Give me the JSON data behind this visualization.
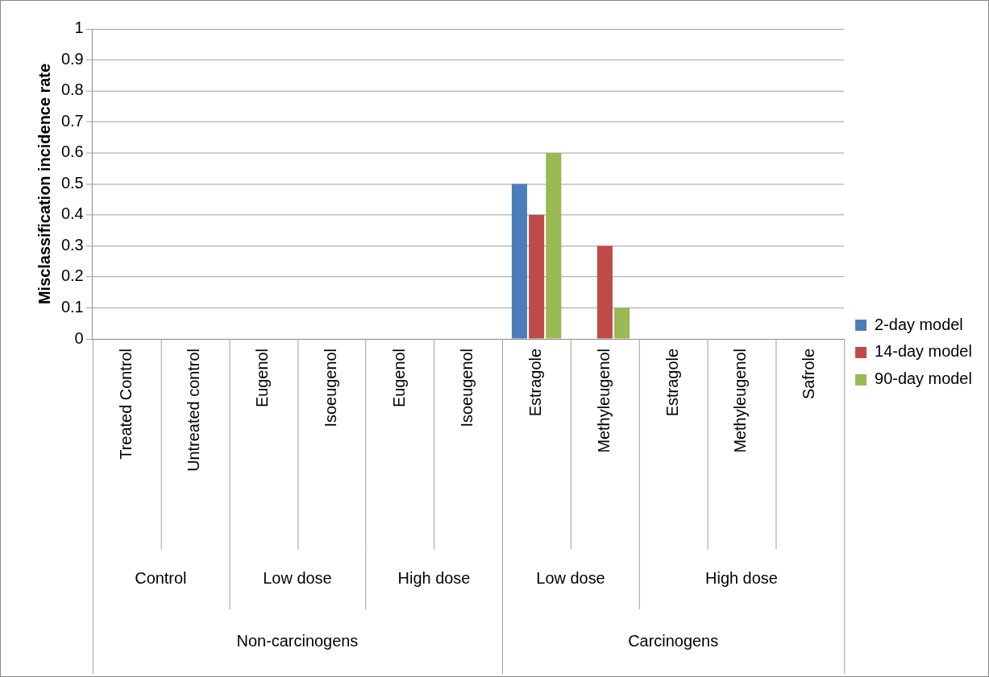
{
  "chart_data": {
    "type": "bar",
    "ylabel": "Misclassification incidence rate",
    "categories": [
      "Treated Control",
      "Untreated control",
      "Eugenol",
      "Isoeugenol",
      "Eugenol",
      "Isoeugenol",
      "Estragole",
      "Methyleugenol",
      "Estragole",
      "Methyleugenol",
      "Safrole"
    ],
    "series": [
      {
        "name": "2-day model",
        "color": "#4a7ebb",
        "values": [
          0,
          0,
          0,
          0,
          0,
          0,
          0.5,
          0,
          0,
          0,
          0
        ]
      },
      {
        "name": "14-day model",
        "color": "#be4b48",
        "values": [
          0,
          0,
          0,
          0,
          0,
          0,
          0.4,
          0.3,
          0,
          0,
          0
        ]
      },
      {
        "name": "90-day model",
        "color": "#98b954",
        "values": [
          0,
          0,
          0,
          0,
          0,
          0,
          0.6,
          0.1,
          0,
          0,
          0
        ]
      }
    ],
    "annotations": [
      "Control",
      "Low dose",
      "High dose",
      "Low dose",
      "High dose",
      "Non-carcinogens",
      "Carcinogens"
    ],
    "ylim": [
      0,
      1
    ],
    "yticks": [
      0,
      0.1,
      0.2,
      0.3,
      0.4,
      0.5,
      0.6,
      0.7,
      0.8,
      0.9,
      1
    ],
    "grid": "y",
    "legend": "right"
  }
}
